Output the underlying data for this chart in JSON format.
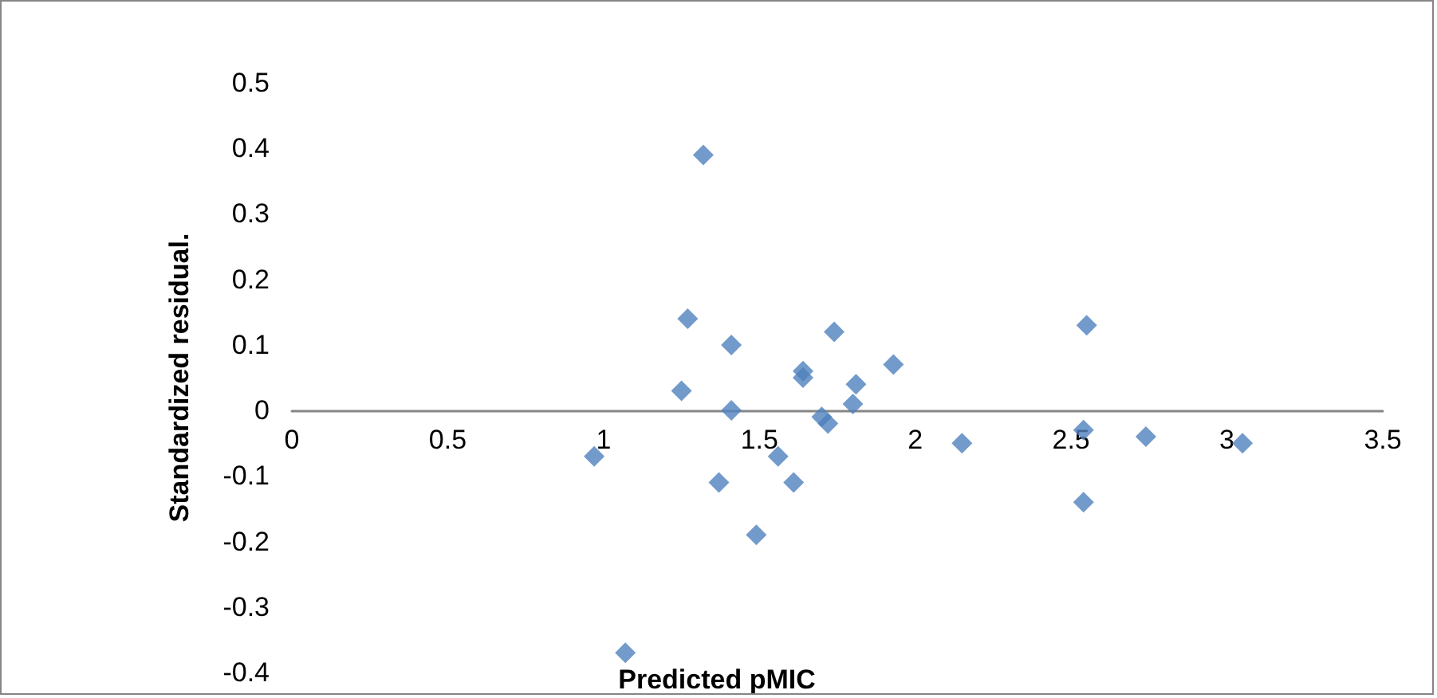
{
  "chart_data": {
    "type": "scatter",
    "xlabel": "Predicted pMIC",
    "ylabel": "Standardized residual.",
    "x": [
      0.97,
      1.07,
      1.32,
      1.27,
      1.25,
      1.41,
      1.41,
      1.37,
      1.49,
      1.56,
      1.61,
      1.64,
      1.64,
      1.74,
      1.7,
      1.72,
      1.81,
      1.8,
      1.93,
      2.15,
      2.55,
      2.54,
      2.54,
      2.74,
      3.05
    ],
    "series": [
      {
        "color": "#4f81bd",
        "values": [
          -0.07,
          -0.37,
          0.39,
          0.14,
          0.03,
          0.1,
          0.0,
          -0.11,
          -0.19,
          -0.07,
          -0.11,
          0.06,
          0.05,
          0.12,
          -0.01,
          -0.02,
          0.04,
          0.01,
          0.07,
          -0.05,
          0.13,
          -0.03,
          -0.14,
          -0.04,
          -0.05
        ]
      }
    ],
    "xlim": [
      0,
      3.5
    ],
    "xticks": [
      0,
      0.5,
      1,
      1.5,
      2,
      2.5,
      3,
      3.5
    ],
    "ylim": [
      -0.4,
      0.5
    ],
    "yticks": [
      -0.4,
      -0.3,
      -0.2,
      -0.1,
      0,
      0.1,
      0.2,
      0.3,
      0.4,
      0.5
    ],
    "marker": "diamond",
    "grid": false
  }
}
